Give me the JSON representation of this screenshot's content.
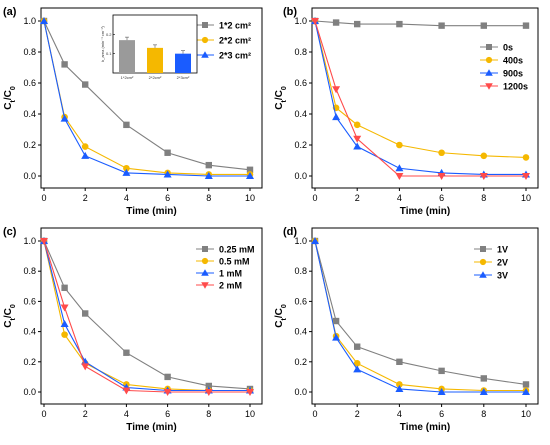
{
  "chart_data": [
    {
      "panel": "(a)",
      "type": "line",
      "xlabel": "Time (min)",
      "ylabel": "C_t/C_0",
      "xlim": [
        0,
        10
      ],
      "ylim": [
        0,
        1.0
      ],
      "xticks": [
        0,
        2,
        4,
        6,
        8,
        10
      ],
      "yticks": [
        0.0,
        0.2,
        0.4,
        0.6,
        0.8,
        1.0
      ],
      "legend_position": "top-right",
      "x": [
        0,
        1,
        2,
        4,
        6,
        8,
        10
      ],
      "series": [
        {
          "name": "1*2 cm²",
          "marker": "square",
          "color": "#808080",
          "values": [
            1.0,
            0.72,
            0.59,
            0.33,
            0.15,
            0.07,
            0.04
          ]
        },
        {
          "name": "2*2 cm²",
          "marker": "circle",
          "color": "#f5b800",
          "values": [
            1.0,
            0.38,
            0.19,
            0.05,
            0.02,
            0.01,
            0.01
          ]
        },
        {
          "name": "2*3 cm²",
          "marker": "triangle",
          "color": "#1a5cff",
          "values": [
            1.0,
            0.37,
            0.13,
            0.02,
            0.01,
            0.0,
            0.0
          ]
        }
      ],
      "inset": {
        "type": "bar",
        "categories": [
          "1*2cm²",
          "2*2cm²",
          "2*3cm²"
        ],
        "values": [
          0.17,
          0.13,
          0.1
        ],
        "ylim": [
          0,
          0.3
        ],
        "yticks": [
          "0.1",
          "0.2"
        ],
        "ylabel": "k_area (min⁻¹ cm⁻²)",
        "colors": [
          "#9a9a9a",
          "#f5b800",
          "#1a5cff"
        ]
      }
    },
    {
      "panel": "(b)",
      "type": "line",
      "xlabel": "Time (min)",
      "ylabel": "C_t/C_0",
      "xlim": [
        0,
        10
      ],
      "ylim": [
        0,
        1.0
      ],
      "xticks": [
        0,
        2,
        4,
        6,
        8,
        10
      ],
      "yticks": [
        0.0,
        0.2,
        0.4,
        0.6,
        0.8,
        1.0
      ],
      "legend_position": "right",
      "x": [
        0,
        1,
        2,
        4,
        6,
        8,
        10
      ],
      "series": [
        {
          "name": "0s",
          "marker": "square",
          "color": "#808080",
          "values": [
            1.0,
            0.99,
            0.98,
            0.98,
            0.97,
            0.97,
            0.97
          ]
        },
        {
          "name": "400s",
          "marker": "circle",
          "color": "#f5b800",
          "values": [
            1.0,
            0.44,
            0.33,
            0.2,
            0.15,
            0.13,
            0.12
          ]
        },
        {
          "name": "900s",
          "marker": "triangle",
          "color": "#1a5cff",
          "values": [
            1.0,
            0.38,
            0.19,
            0.05,
            0.02,
            0.01,
            0.01
          ]
        },
        {
          "name": "1200s",
          "marker": "triangle-down",
          "color": "#ff4b4b",
          "values": [
            1.0,
            0.56,
            0.24,
            0.0,
            0.0,
            0.0,
            0.0
          ]
        }
      ]
    },
    {
      "panel": "(c)",
      "type": "line",
      "xlabel": "Time (min)",
      "ylabel": "C_t/C_0",
      "xlim": [
        0,
        10
      ],
      "ylim": [
        0,
        1.0
      ],
      "xticks": [
        0,
        2,
        4,
        6,
        8,
        10
      ],
      "yticks": [
        0.0,
        0.2,
        0.4,
        0.6,
        0.8,
        1.0
      ],
      "legend_position": "top-right",
      "x": [
        0,
        1,
        2,
        4,
        6,
        8,
        10
      ],
      "series": [
        {
          "name": "0.25 mM",
          "marker": "square",
          "color": "#808080",
          "values": [
            1.0,
            0.69,
            0.52,
            0.26,
            0.1,
            0.04,
            0.02
          ]
        },
        {
          "name": "0.5 mM",
          "marker": "circle",
          "color": "#f5b800",
          "values": [
            1.0,
            0.38,
            0.19,
            0.05,
            0.02,
            0.01,
            0.01
          ]
        },
        {
          "name": "1 mM",
          "marker": "triangle",
          "color": "#1a5cff",
          "values": [
            1.0,
            0.45,
            0.2,
            0.03,
            0.01,
            0.01,
            0.01
          ]
        },
        {
          "name": "2 mM",
          "marker": "triangle-down",
          "color": "#ff4b4b",
          "values": [
            1.0,
            0.56,
            0.17,
            0.01,
            0.0,
            0.0,
            0.0
          ]
        }
      ]
    },
    {
      "panel": "(d)",
      "type": "line",
      "xlabel": "Time (min)",
      "ylabel": "C_t/C_0",
      "xlim": [
        0,
        10
      ],
      "ylim": [
        0,
        1.0
      ],
      "xticks": [
        0,
        2,
        4,
        6,
        8,
        10
      ],
      "yticks": [
        0.0,
        0.2,
        0.4,
        0.6,
        0.8,
        1.0
      ],
      "legend_position": "top-right",
      "x": [
        0,
        1,
        2,
        4,
        6,
        8,
        10
      ],
      "series": [
        {
          "name": "1V",
          "marker": "square",
          "color": "#808080",
          "values": [
            1.0,
            0.47,
            0.3,
            0.2,
            0.14,
            0.09,
            0.05
          ]
        },
        {
          "name": "2V",
          "marker": "circle",
          "color": "#f5b800",
          "values": [
            1.0,
            0.37,
            0.19,
            0.05,
            0.02,
            0.01,
            0.01
          ]
        },
        {
          "name": "3V",
          "marker": "triangle",
          "color": "#1a5cff",
          "values": [
            1.0,
            0.36,
            0.15,
            0.02,
            0.0,
            0.0,
            0.0
          ]
        }
      ]
    }
  ]
}
